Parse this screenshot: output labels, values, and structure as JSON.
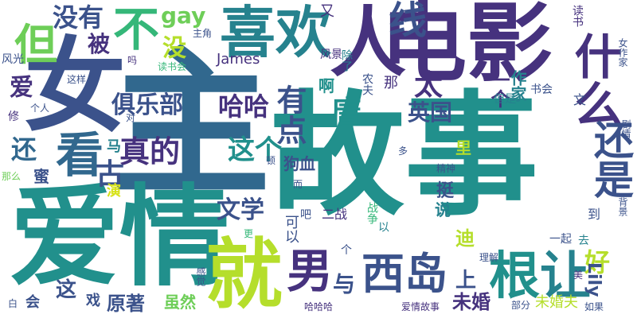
{
  "palette": {
    "teal": "#21908c",
    "deep_teal": "#26828e",
    "blue": "#31688e",
    "slate": "#3b528b",
    "purple": "#46327e",
    "dark_purple": "#440154",
    "green": "#35b779",
    "lime": "#6ece58",
    "yellow_green": "#b5de2b",
    "yellow": "#d7e219"
  },
  "words": [
    {
      "id": "w1",
      "text": "故事",
      "color": "#21908c"
    },
    {
      "id": "w2",
      "text": "主",
      "color": "#31688e"
    },
    {
      "id": "w3",
      "text": "爱情",
      "color": "#21908c"
    },
    {
      "id": "w4",
      "text": "电影",
      "color": "#46327e"
    },
    {
      "id": "w5",
      "text": "女",
      "color": "#3b528b"
    },
    {
      "id": "w6",
      "text": "喜欢",
      "color": "#26828e"
    },
    {
      "id": "w7",
      "text": "人",
      "color": "#46327e"
    },
    {
      "id": "w8",
      "text": "就",
      "color": "#b5de2b"
    },
    {
      "id": "w9",
      "text": "不",
      "color": "#35b779"
    },
    {
      "id": "w10",
      "text": "但",
      "color": "#6ece58"
    },
    {
      "id": "w11",
      "text": "线",
      "color": "#3b528b"
    },
    {
      "id": "w12",
      "text": "什么",
      "color": "#46327e"
    },
    {
      "id": "w13",
      "text": "还是",
      "color": "#3b528b"
    },
    {
      "id": "w14",
      "text": "看",
      "color": "#31688e"
    },
    {
      "id": "w15",
      "text": "男",
      "color": "#46327e"
    },
    {
      "id": "w16",
      "text": "西岛",
      "color": "#3b528b"
    },
    {
      "id": "w17",
      "text": "根",
      "color": "#21908c"
    },
    {
      "id": "w18",
      "text": "让",
      "color": "#26828e"
    },
    {
      "id": "w19",
      "text": "有点",
      "color": "#3b528b"
    },
    {
      "id": "w20",
      "text": "真的",
      "color": "#46327e"
    },
    {
      "id": "w21",
      "text": "俱乐部",
      "color": "#3b528b"
    },
    {
      "id": "w22",
      "text": "哈哈",
      "color": "#46327e"
    },
    {
      "id": "w23",
      "text": "文学",
      "color": "#3b528b"
    },
    {
      "id": "w24",
      "text": "这个",
      "color": "#21908c"
    },
    {
      "id": "w25",
      "text": "唐",
      "color": "#21908c"
    },
    {
      "id": "w26",
      "text": "英国",
      "color": "#3b528b"
    },
    {
      "id": "w27",
      "text": "太",
      "color": "#46327e"
    },
    {
      "id": "w28",
      "text": "古",
      "color": "#3b528b"
    },
    {
      "id": "w29",
      "text": "还",
      "color": "#31688e"
    },
    {
      "id": "w30",
      "text": "没有",
      "color": "#3b528b"
    },
    {
      "id": "w31",
      "text": "gay",
      "color": "#6ece58"
    },
    {
      "id": "w32",
      "text": "没",
      "color": "#b5de2b"
    },
    {
      "id": "w33",
      "text": "爱",
      "color": "#46327e"
    },
    {
      "id": "w34",
      "text": "被",
      "color": "#46327e"
    },
    {
      "id": "w35",
      "text": "James",
      "color": "#46327e"
    },
    {
      "id": "w36",
      "text": "好",
      "color": "#b5de2b"
    },
    {
      "id": "w37",
      "text": "Lily",
      "color": "#3b528b"
    },
    {
      "id": "w38",
      "text": "与",
      "color": "#3b528b"
    },
    {
      "id": "w39",
      "text": "原著",
      "color": "#3b528b"
    },
    {
      "id": "w40",
      "text": "未婚",
      "color": "#46327e"
    },
    {
      "id": "w41",
      "text": "上",
      "color": "#3b528b"
    },
    {
      "id": "w42",
      "text": "这",
      "color": "#3b528b"
    },
    {
      "id": "w43",
      "text": "狗血",
      "color": "#3b528b"
    },
    {
      "id": "w44",
      "text": "挺",
      "color": "#3b528b"
    },
    {
      "id": "w45",
      "text": "说",
      "color": "#26828e"
    },
    {
      "id": "w46",
      "text": "迪",
      "color": "#b5de2b"
    },
    {
      "id": "w47",
      "text": "里",
      "color": "#b5de2b"
    },
    {
      "id": "w48",
      "text": "一个",
      "color": "#46327e"
    },
    {
      "id": "w49",
      "text": "作家",
      "color": "#26828e"
    },
    {
      "id": "w50",
      "text": "但是",
      "color": "#26828e"
    },
    {
      "id": "w51",
      "text": "书会",
      "color": "#3b528b"
    },
    {
      "id": "w52",
      "text": "文",
      "color": "#3b528b"
    },
    {
      "id": "w53",
      "text": "读书",
      "color": "#46327e"
    },
    {
      "id": "w54",
      "text": "又",
      "color": "#46327e"
    },
    {
      "id": "w55",
      "text": "风景",
      "color": "#46327e"
    },
    {
      "id": "w56",
      "text": "除了",
      "color": "#26828e"
    },
    {
      "id": "w57",
      "text": "那",
      "color": "#46327e"
    },
    {
      "id": "w58",
      "text": "农夫",
      "color": "#3b528b"
    },
    {
      "id": "w59",
      "text": "啊",
      "color": "#21908c"
    },
    {
      "id": "w60",
      "text": "马",
      "color": "#26828e"
    },
    {
      "id": "w61",
      "text": "蜜",
      "color": "#3b528b"
    },
    {
      "id": "w62",
      "text": "演",
      "color": "#d7e219"
    },
    {
      "id": "w63",
      "text": "戏",
      "color": "#3b528b"
    },
    {
      "id": "w64",
      "text": "会",
      "color": "#3b528b"
    },
    {
      "id": "w65",
      "text": "虽然",
      "color": "#6ece58"
    },
    {
      "id": "w66",
      "text": "可以",
      "color": "#3b528b"
    },
    {
      "id": "w67",
      "text": "吧",
      "color": "#3b528b"
    },
    {
      "id": "w68",
      "text": "二战",
      "color": "#46327e"
    },
    {
      "id": "w69",
      "text": "战争",
      "color": "#35b779"
    },
    {
      "id": "w70",
      "text": "以",
      "color": "#26828e"
    },
    {
      "id": "w71",
      "text": "一起",
      "color": "#3b528b"
    },
    {
      "id": "w72",
      "text": "到",
      "color": "#3b528b"
    },
    {
      "id": "w73",
      "text": "去",
      "color": "#26828e"
    },
    {
      "id": "w74",
      "text": "未婚夫",
      "color": "#b5de2b"
    },
    {
      "id": "w75",
      "text": "剧情",
      "color": "#3b528b"
    },
    {
      "id": "w76",
      "text": "风光",
      "color": "#3b528b"
    },
    {
      "id": "w77",
      "text": "修",
      "color": "#46327e"
    },
    {
      "id": "w78",
      "text": "这样",
      "color": "#3b528b"
    },
    {
      "id": "w79",
      "text": "个人",
      "color": "#3b528b"
    },
    {
      "id": "w80",
      "text": "那么",
      "color": "#6ece58"
    },
    {
      "id": "w81",
      "text": "主角",
      "color": "#3b528b"
    },
    {
      "id": "w82",
      "text": "吗",
      "color": "#46327e"
    },
    {
      "id": "w83",
      "text": "读书会",
      "color": "#35b779"
    },
    {
      "id": "w84",
      "text": "对",
      "color": "#3b528b"
    },
    {
      "id": "w85",
      "text": "多",
      "color": "#3b528b"
    },
    {
      "id": "w86",
      "text": "精神",
      "color": "#3b528b"
    },
    {
      "id": "w87",
      "text": "而",
      "color": "#3b528b"
    },
    {
      "id": "w88",
      "text": "更",
      "color": "#35b779"
    },
    {
      "id": "w89",
      "text": "个",
      "color": "#3b528b"
    },
    {
      "id": "w90",
      "text": "理解",
      "color": "#3b528b"
    },
    {
      "id": "w91",
      "text": "美",
      "color": "#46327e"
    },
    {
      "id": "w92",
      "text": "部分",
      "color": "#3b528b"
    },
    {
      "id": "w93",
      "text": "如果",
      "color": "#3b528b"
    },
    {
      "id": "w94",
      "text": "爱情故事",
      "color": "#46327e"
    },
    {
      "id": "w95",
      "text": "哈哈哈",
      "color": "#46327e"
    },
    {
      "id": "w96",
      "text": "白",
      "color": "#3b528b"
    },
    {
      "id": "w97",
      "text": "感觉",
      "color": "#3b528b"
    },
    {
      "id": "w98",
      "text": "背景",
      "color": "#3b528b"
    },
    {
      "id": "w99",
      "text": "女作家",
      "color": "#3b528b"
    },
    {
      "id": "w100",
      "text": "顿",
      "color": "#3b528b"
    }
  ]
}
